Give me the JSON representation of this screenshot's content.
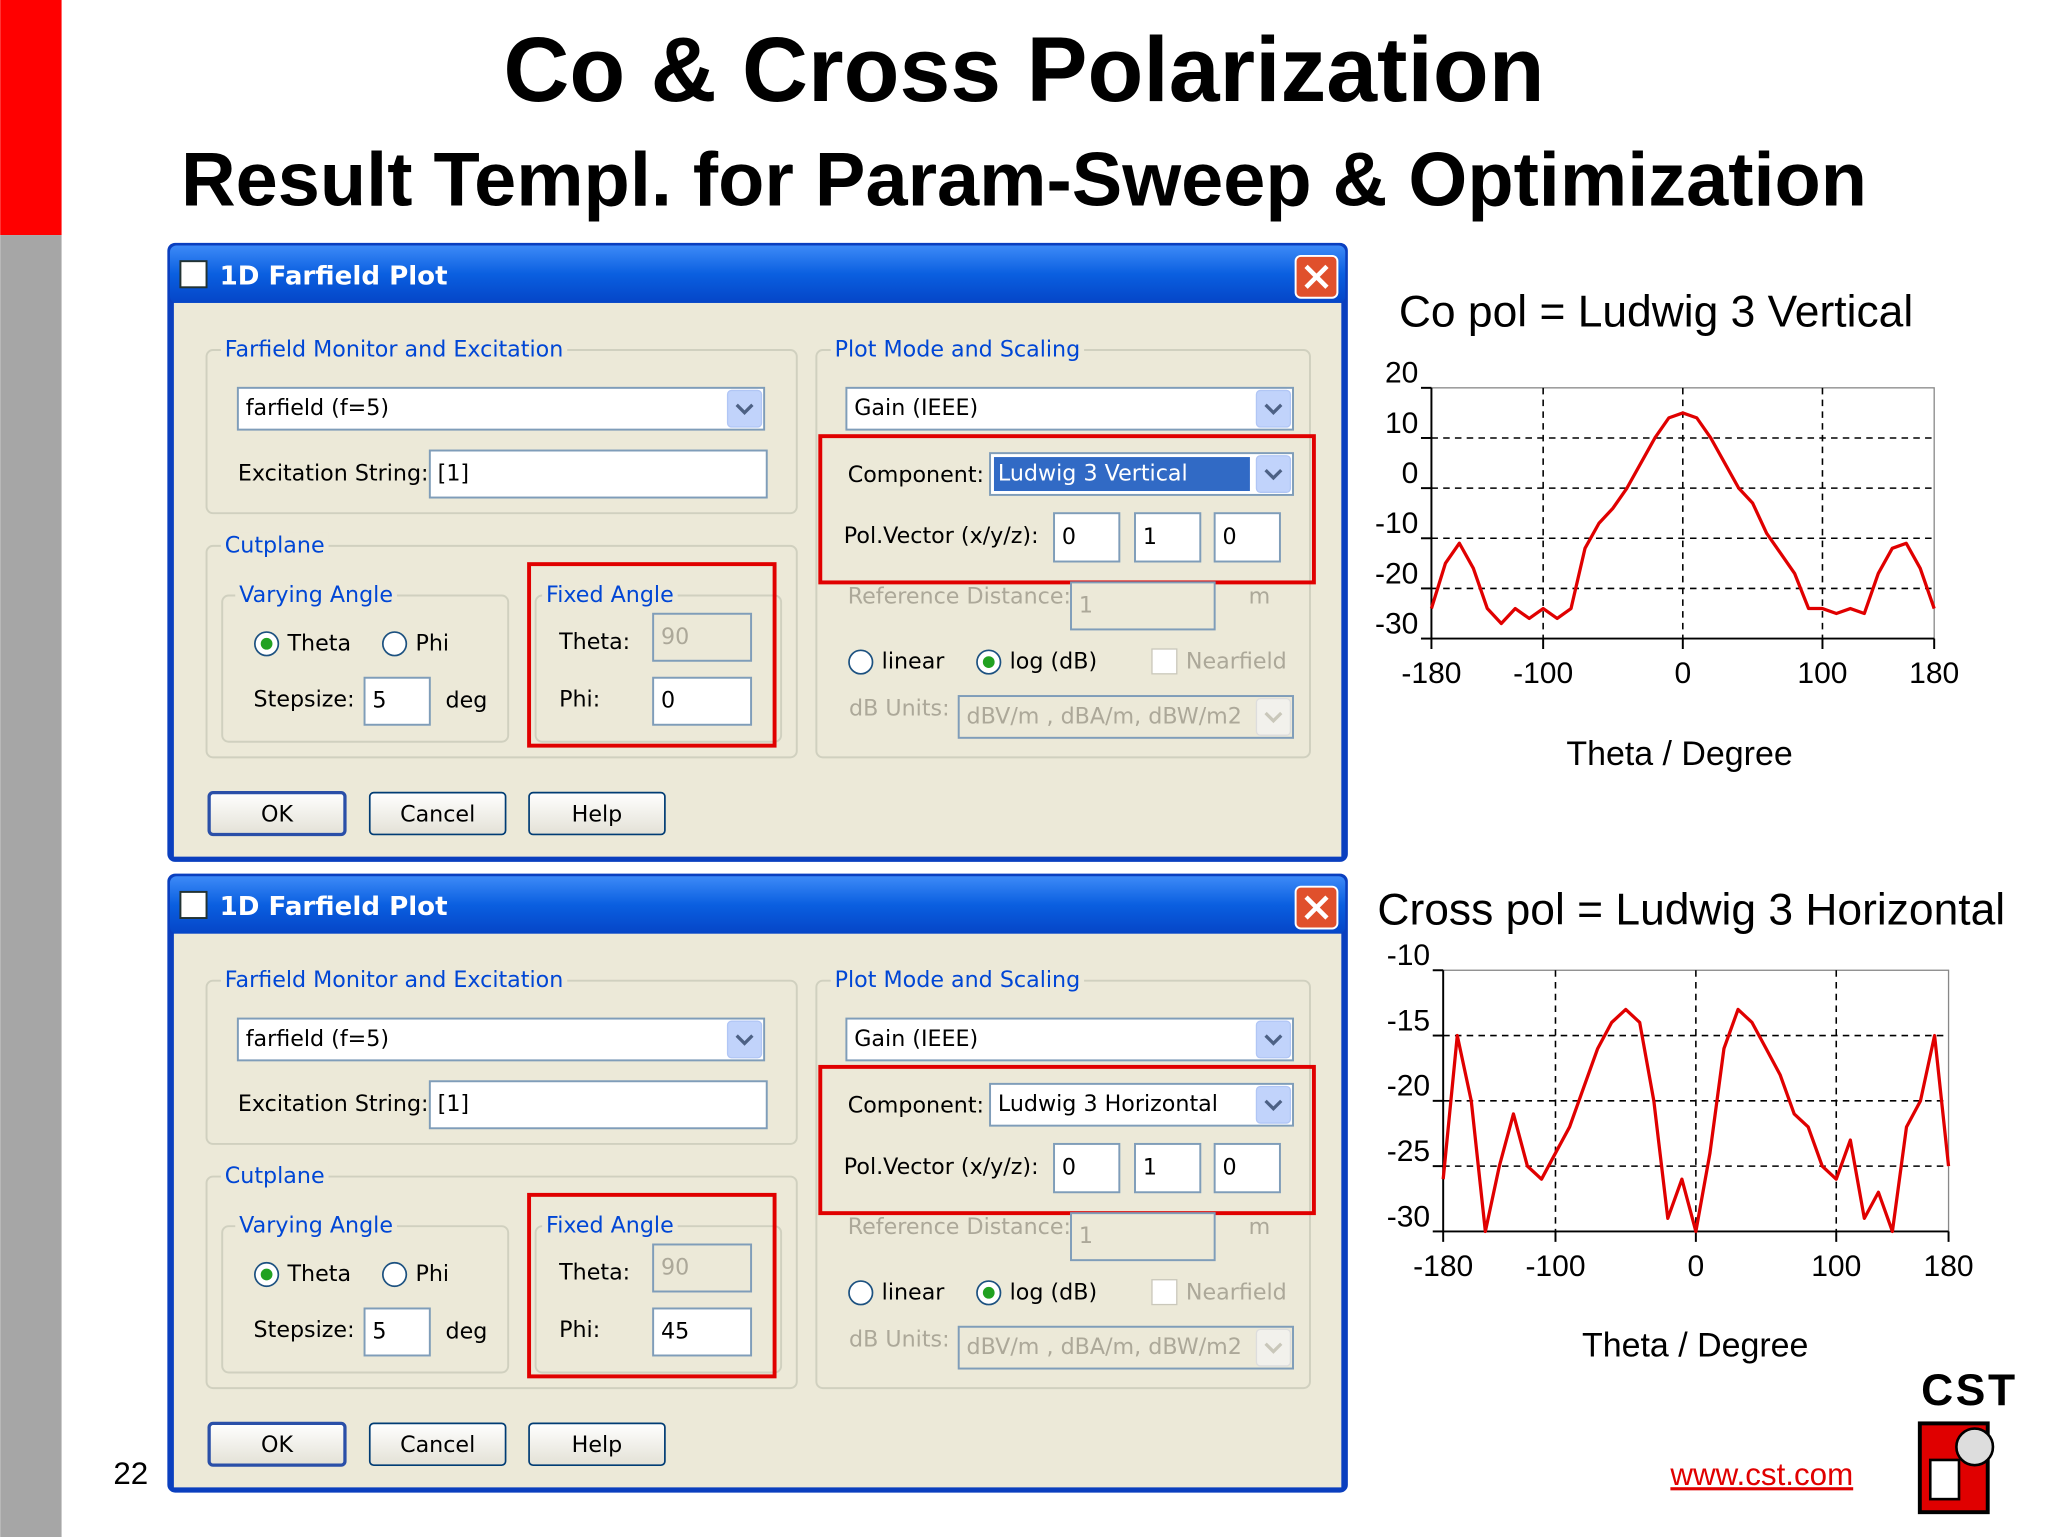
{
  "header": {
    "title": "Co & Cross Polarization",
    "subtitle": "Result Templ. for Param-Sweep & Optimization"
  },
  "dialogs": [
    {
      "title": "1D Farfield Plot",
      "monitor_group": "Farfield Monitor and Excitation",
      "monitor": "farfield (f=5)",
      "excitation_label": "Excitation String:",
      "excitation": "[1]",
      "cutplane_group": "Cutplane",
      "varying_group": "Varying Angle",
      "theta_radio": "Theta",
      "phi_radio": "Phi",
      "stepsize_label": "Stepsize:",
      "stepsize": "5",
      "stepsize_unit": "deg",
      "fixed_group": "Fixed Angle",
      "theta_label": "Theta:",
      "theta": "90",
      "phi_label": "Phi:",
      "phi": "0",
      "plot_group": "Plot Mode and Scaling",
      "mode": "Gain (IEEE)",
      "component_label": "Component:",
      "component": "Ludwig 3 Vertical",
      "component_highlighted": true,
      "polvector_label": "Pol.Vector (x/y/z):",
      "polvector": [
        "0",
        "1",
        "0"
      ],
      "ref_label": "Reference Distance:",
      "ref": "1",
      "ref_unit": "m",
      "linear": "linear",
      "log": "log (dB)",
      "nearfield": "Nearfield",
      "db_label": "dB Units:",
      "db_units": "dBV/m , dBA/m, dBW/m2",
      "buttons": [
        "OK",
        "Cancel",
        "Help"
      ]
    },
    {
      "title": "1D Farfield Plot",
      "monitor_group": "Farfield Monitor and Excitation",
      "monitor": "farfield (f=5)",
      "excitation_label": "Excitation String:",
      "excitation": "[1]",
      "cutplane_group": "Cutplane",
      "varying_group": "Varying Angle",
      "theta_radio": "Theta",
      "phi_radio": "Phi",
      "stepsize_label": "Stepsize:",
      "stepsize": "5",
      "stepsize_unit": "deg",
      "fixed_group": "Fixed Angle",
      "theta_label": "Theta:",
      "theta": "90",
      "phi_label": "Phi:",
      "phi": "45",
      "plot_group": "Plot Mode and Scaling",
      "mode": "Gain (IEEE)",
      "component_label": "Component:",
      "component": "Ludwig 3 Horizontal",
      "component_highlighted": false,
      "polvector_label": "Pol.Vector (x/y/z):",
      "polvector": [
        "0",
        "1",
        "0"
      ],
      "ref_label": "Reference Distance:",
      "ref": "1",
      "ref_unit": "m",
      "linear": "linear",
      "log": "log (dB)",
      "nearfield": "Nearfield",
      "db_label": "dB Units:",
      "db_units": "dBV/m , dBA/m, dBW/m2",
      "buttons": [
        "OK",
        "Cancel",
        "Help"
      ]
    }
  ],
  "chart_data": [
    {
      "type": "line",
      "title": "Co pol = Ludwig 3 Vertical",
      "x_label": "Theta / Degree",
      "color": "#e00000",
      "x": [
        -180,
        -170,
        -160,
        -150,
        -140,
        -130,
        -120,
        -110,
        -100,
        -90,
        -80,
        -70,
        -60,
        -50,
        -40,
        -30,
        -20,
        -10,
        0,
        10,
        20,
        30,
        40,
        50,
        60,
        70,
        80,
        90,
        100,
        110,
        120,
        130,
        140,
        150,
        160,
        170,
        180
      ],
      "values": [
        -24,
        -15,
        -11,
        -16,
        -24,
        -27,
        -24,
        -26,
        -24,
        -26,
        -24,
        -12,
        -7,
        -4,
        0,
        5,
        10,
        14,
        15,
        14,
        10,
        5,
        0,
        -3,
        -9,
        -13,
        -17,
        -24,
        -24,
        -25,
        -24,
        -25,
        -17,
        -12,
        -11,
        -16,
        -24
      ],
      "xlim": [
        -180,
        180
      ],
      "ylim": [
        -30,
        20
      ],
      "xticks": [
        -180,
        -100,
        0,
        100,
        180
      ],
      "yticks": [
        -30,
        -20,
        -10,
        0,
        10,
        20
      ],
      "grid": true
    },
    {
      "type": "line",
      "title": "Cross pol = Ludwig 3 Horizontal",
      "x_label": "Theta / Degree",
      "color": "#e00000",
      "x": [
        -180,
        -170,
        -160,
        -150,
        -140,
        -130,
        -120,
        -110,
        -100,
        -90,
        -80,
        -70,
        -60,
        -50,
        -40,
        -30,
        -20,
        -10,
        0,
        10,
        20,
        30,
        40,
        50,
        60,
        70,
        80,
        90,
        100,
        110,
        120,
        130,
        140,
        150,
        160,
        170,
        180
      ],
      "values": [
        -26,
        -15,
        -20,
        -30,
        -25,
        -21,
        -25,
        -26,
        -24,
        -22,
        -19,
        -16,
        -14,
        -13,
        -14,
        -20,
        -29,
        -26,
        -30,
        -24,
        -16,
        -13,
        -14,
        -16,
        -18,
        -21,
        -22,
        -25,
        -26,
        -23,
        -29,
        -27,
        -30,
        -22,
        -20,
        -15,
        -25
      ],
      "xlim": [
        -180,
        180
      ],
      "ylim": [
        -30,
        -10
      ],
      "xticks": [
        -180,
        -100,
        0,
        100,
        180
      ],
      "yticks": [
        -30,
        -25,
        -20,
        -15,
        -10
      ],
      "grid": true
    }
  ],
  "footer": {
    "page": "22",
    "url": "www.cst.com",
    "logo": "CST"
  }
}
